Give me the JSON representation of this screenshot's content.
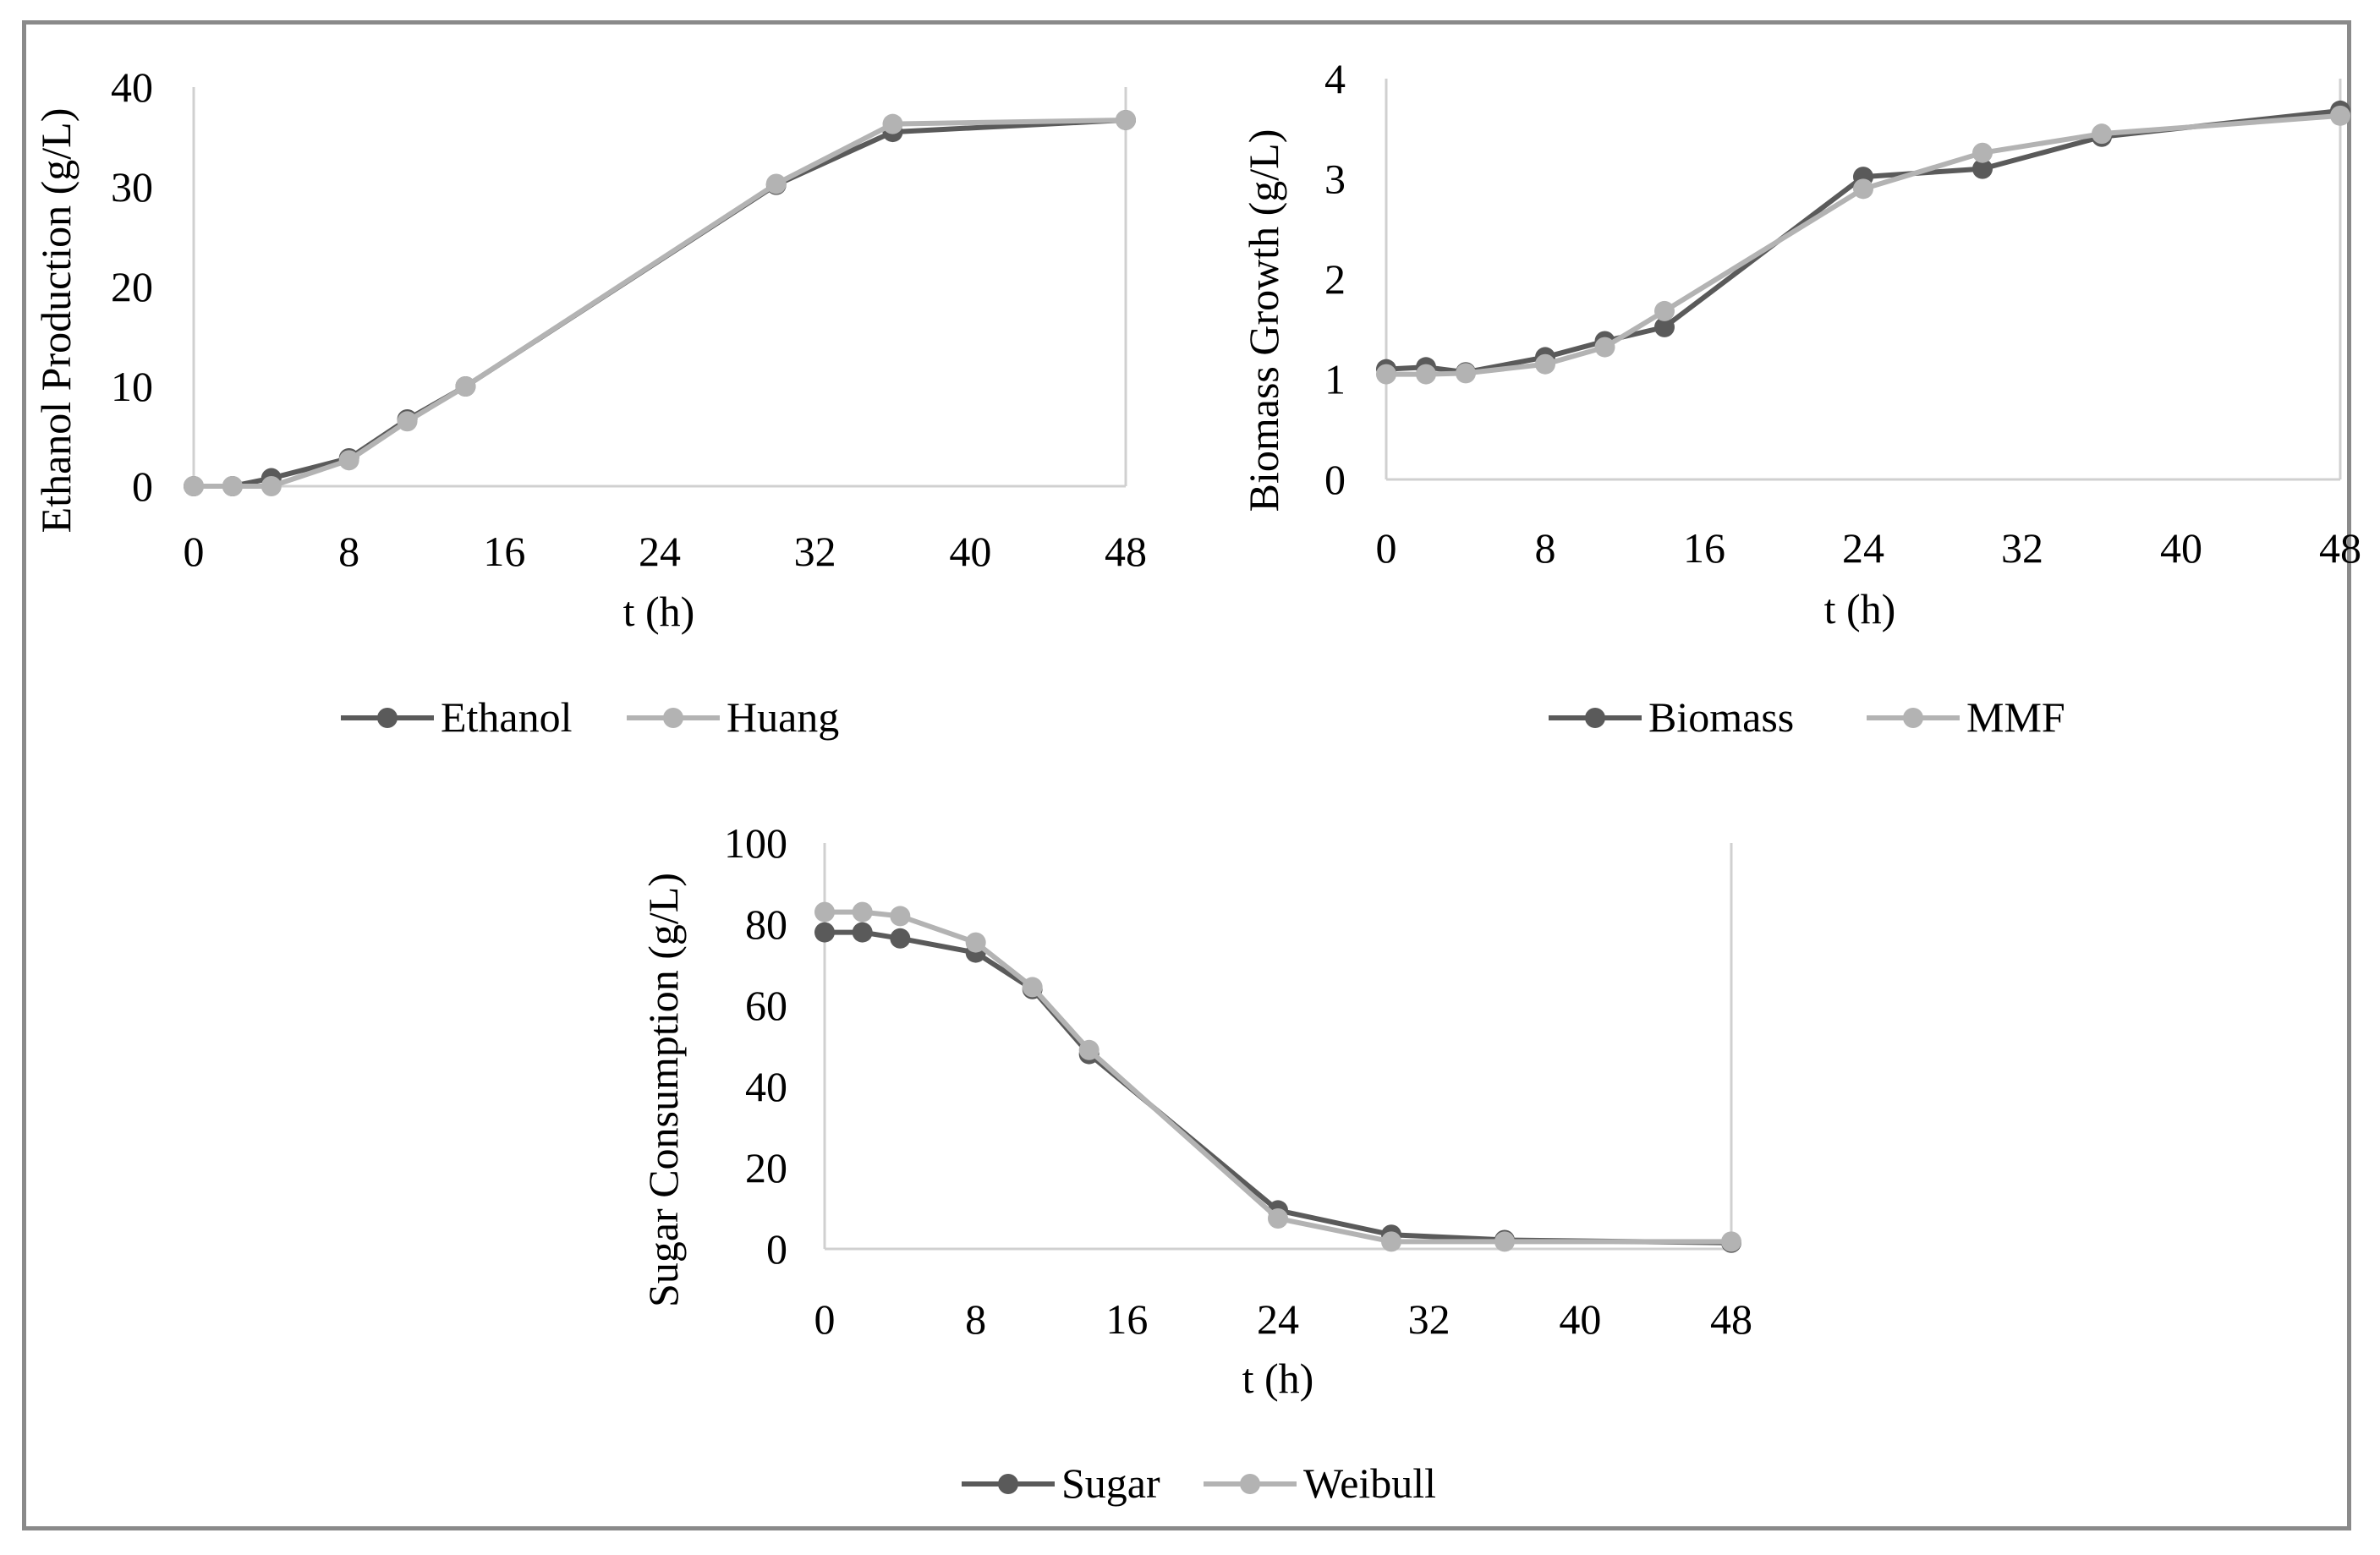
{
  "chart_data": [
    {
      "type": "line",
      "title": "",
      "xlabel": "t (h)",
      "ylabel": "Ethanol Production  (g/L)",
      "xlim": [
        0,
        48
      ],
      "ylim": [
        0,
        40
      ],
      "xticks": [
        "0",
        "8",
        "16",
        "24",
        "32",
        "40",
        "48"
      ],
      "yticks": [
        "0",
        "10",
        "20",
        "30",
        "40"
      ],
      "series": [
        {
          "name": "Ethanol",
          "color": "#5a5a5a",
          "x": [
            0,
            2,
            4,
            8,
            11,
            14,
            30,
            36,
            48
          ],
          "y": [
            0,
            0,
            0.8,
            2.8,
            6.7,
            10.0,
            30.2,
            35.5,
            36.7
          ]
        },
        {
          "name": "Huang",
          "color": "#b3b3b3",
          "x": [
            0,
            2,
            4,
            8,
            11,
            14,
            30,
            36,
            48
          ],
          "y": [
            0,
            0,
            0,
            2.6,
            6.5,
            10.0,
            30.3,
            36.3,
            36.7
          ]
        }
      ],
      "legend": "bottom"
    },
    {
      "type": "line",
      "title": "",
      "xlabel": "t (h)",
      "ylabel": "Biomass Growth  (g/L)",
      "xlim": [
        0,
        48
      ],
      "ylim": [
        0,
        4
      ],
      "xticks": [
        "0",
        "8",
        "16",
        "24",
        "32",
        "40",
        "48"
      ],
      "yticks": [
        "0",
        "1",
        "2",
        "3",
        "4"
      ],
      "series": [
        {
          "name": "Biomass",
          "color": "#5a5a5a",
          "x": [
            0,
            2,
            4,
            8,
            11,
            14,
            24,
            30,
            36,
            48
          ],
          "y": [
            1.1,
            1.12,
            1.07,
            1.22,
            1.38,
            1.52,
            3.02,
            3.1,
            3.42,
            3.68
          ]
        },
        {
          "name": "MMF",
          "color": "#b3b3b3",
          "x": [
            0,
            2,
            4,
            8,
            11,
            14,
            24,
            30,
            36,
            48
          ],
          "y": [
            1.05,
            1.05,
            1.06,
            1.15,
            1.32,
            1.68,
            2.9,
            3.26,
            3.45,
            3.63
          ]
        }
      ],
      "legend": "bottom"
    },
    {
      "type": "line",
      "title": "",
      "xlabel": "t (h)",
      "ylabel": "Sugar Consumption  (g/L)",
      "xlim": [
        0,
        48
      ],
      "ylim": [
        0,
        100
      ],
      "xticks": [
        "0",
        "8",
        "16",
        "24",
        "32",
        "40",
        "48"
      ],
      "yticks": [
        "0",
        "20",
        "40",
        "60",
        "80",
        "100"
      ],
      "series": [
        {
          "name": "Sugar",
          "color": "#5a5a5a",
          "x": [
            0,
            2,
            4,
            8,
            11,
            14,
            24,
            30,
            36,
            48
          ],
          "y": [
            78,
            78,
            76.5,
            73,
            64,
            48,
            9.5,
            3.5,
            2.2,
            1.5
          ]
        },
        {
          "name": "Weibull",
          "color": "#b3b3b3",
          "x": [
            0,
            2,
            4,
            8,
            11,
            14,
            24,
            30,
            36,
            48
          ],
          "y": [
            83,
            83,
            82,
            75.5,
            64.5,
            49,
            7.5,
            1.8,
            1.8,
            1.8
          ]
        }
      ],
      "legend": "bottom"
    }
  ]
}
